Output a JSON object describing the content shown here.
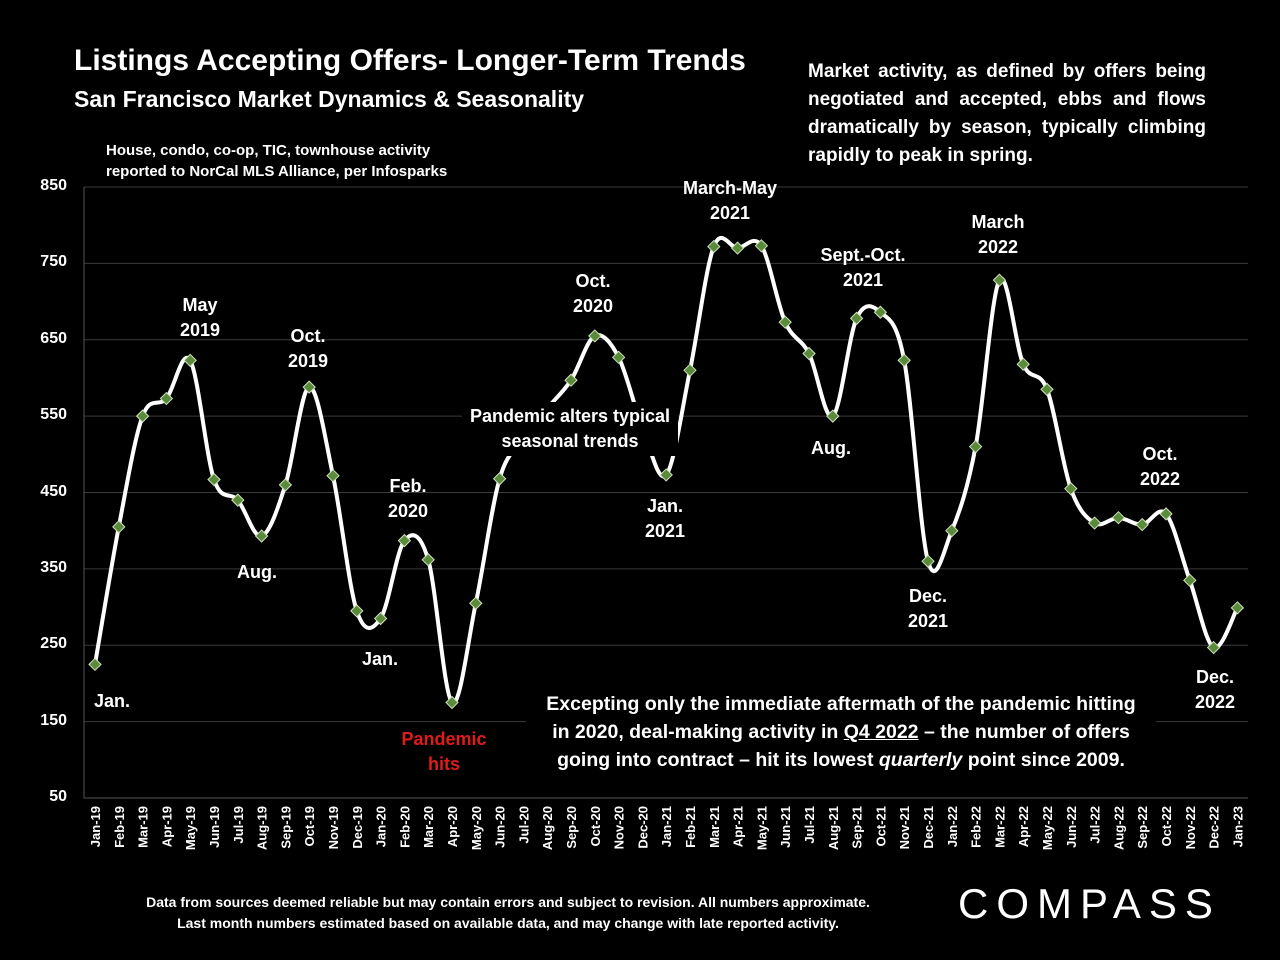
{
  "header": {
    "title": "Listings Accepting Offers- Longer-Term Trends",
    "subtitle": "San Francisco Market Dynamics & Seasonality",
    "source_note_line1": "House, condo, co-op, TIC, townhouse activity",
    "source_note_line2": "reported to NorCal MLS Alliance, per Infosparks",
    "description": "Market activity, as defined by offers being negotiated and accepted, ebbs and flows dramatically by season, typically climbing rapidly to peak in spring."
  },
  "footer": {
    "line1": "Data from sources deemed reliable but may contain errors and subject to revision. All numbers approximate.",
    "line2": "Last month numbers estimated based on available data, and may change with late reported activity.",
    "logo": "COMPASS"
  },
  "annotations": {
    "jan19": "Jan.",
    "may19_a": "May",
    "may19_b": "2019",
    "aug19": "Aug.",
    "oct19_a": "Oct.",
    "oct19_b": "2019",
    "jan20": "Jan.",
    "feb20_a": "Feb.",
    "feb20_b": "2020",
    "pandemic_a": "Pandemic",
    "pandemic_b": "hits",
    "oct20_a": "Oct.",
    "oct20_b": "2020",
    "pandemic_alters_a": "Pandemic alters typical",
    "pandemic_alters_b": "seasonal trends",
    "jan21_a": "Jan.",
    "jan21_b": "2021",
    "marmay21_a": "March-May",
    "marmay21_b": "2021",
    "aug21": "Aug.",
    "sepoct21_a": "Sept.-Oct.",
    "sepoct21_b": "2021",
    "dec21_a": "Dec.",
    "dec21_b": "2021",
    "mar22_a": "March",
    "mar22_b": "2022",
    "oct22_a": "Oct.",
    "oct22_b": "2022",
    "dec22_a": "Dec.",
    "dec22_b": "2022",
    "excepting_line1": "Excepting  only the immediate aftermath of the pandemic hitting",
    "excepting_line2_pre": "in 2020, deal-making activity in ",
    "excepting_line2_u": "Q4 2022",
    "excepting_line2_post": " – the number of offers",
    "excepting_line3_pre": "going into contract – hit its lowest ",
    "excepting_line3_i": "quarterly",
    "excepting_line3_post": " point since 2009."
  },
  "colors": {
    "background": "#000000",
    "line": "#ffffff",
    "marker": "#5a8a3a",
    "gridline": "#3a3a3a",
    "pandemic_text": "#e01b1b"
  },
  "chart_data": {
    "type": "line",
    "title": "Listings Accepting Offers- Longer-Term Trends",
    "subtitle": "San Francisco Market Dynamics & Seasonality",
    "xlabel": "",
    "ylabel": "",
    "ylim": [
      50,
      850
    ],
    "yticks": [
      50,
      150,
      250,
      350,
      450,
      550,
      650,
      750,
      850
    ],
    "grid": true,
    "categories": [
      "Jan-19",
      "Feb-19",
      "Mar-19",
      "Apr-19",
      "May-19",
      "Jun-19",
      "Jul-19",
      "Aug-19",
      "Sep-19",
      "Oct-19",
      "Nov-19",
      "Dec-19",
      "Jan-20",
      "Feb-20",
      "Mar-20",
      "Apr-20",
      "May-20",
      "Jun-20",
      "Jul-20",
      "Aug-20",
      "Sep-20",
      "Oct-20",
      "Nov-20",
      "Dec-20",
      "Jan-21",
      "Feb-21",
      "Mar-21",
      "Apr-21",
      "May-21",
      "Jun-21",
      "Jul-21",
      "Aug-21",
      "Sep-21",
      "Oct-21",
      "Nov-21",
      "Dec-21",
      "Jan-22",
      "Feb-22",
      "Mar-22",
      "Apr-22",
      "May-22",
      "Jun-22",
      "Jul-22",
      "Aug-22",
      "Sep-22",
      "Oct-22",
      "Nov-22",
      "Dec-22",
      "Jan-23"
    ],
    "series": [
      {
        "values": [
          225,
          405,
          550,
          573,
          623,
          467,
          440,
          393,
          460,
          588,
          472,
          295,
          285,
          387,
          362,
          175,
          305,
          468,
          520,
          560,
          597,
          655,
          627,
          535,
          473,
          610,
          772,
          770,
          773,
          673,
          632,
          550,
          678,
          686,
          623,
          360,
          400,
          510,
          728,
          618,
          585,
          455,
          410,
          417,
          408,
          422,
          335,
          247,
          299
        ]
      }
    ]
  }
}
